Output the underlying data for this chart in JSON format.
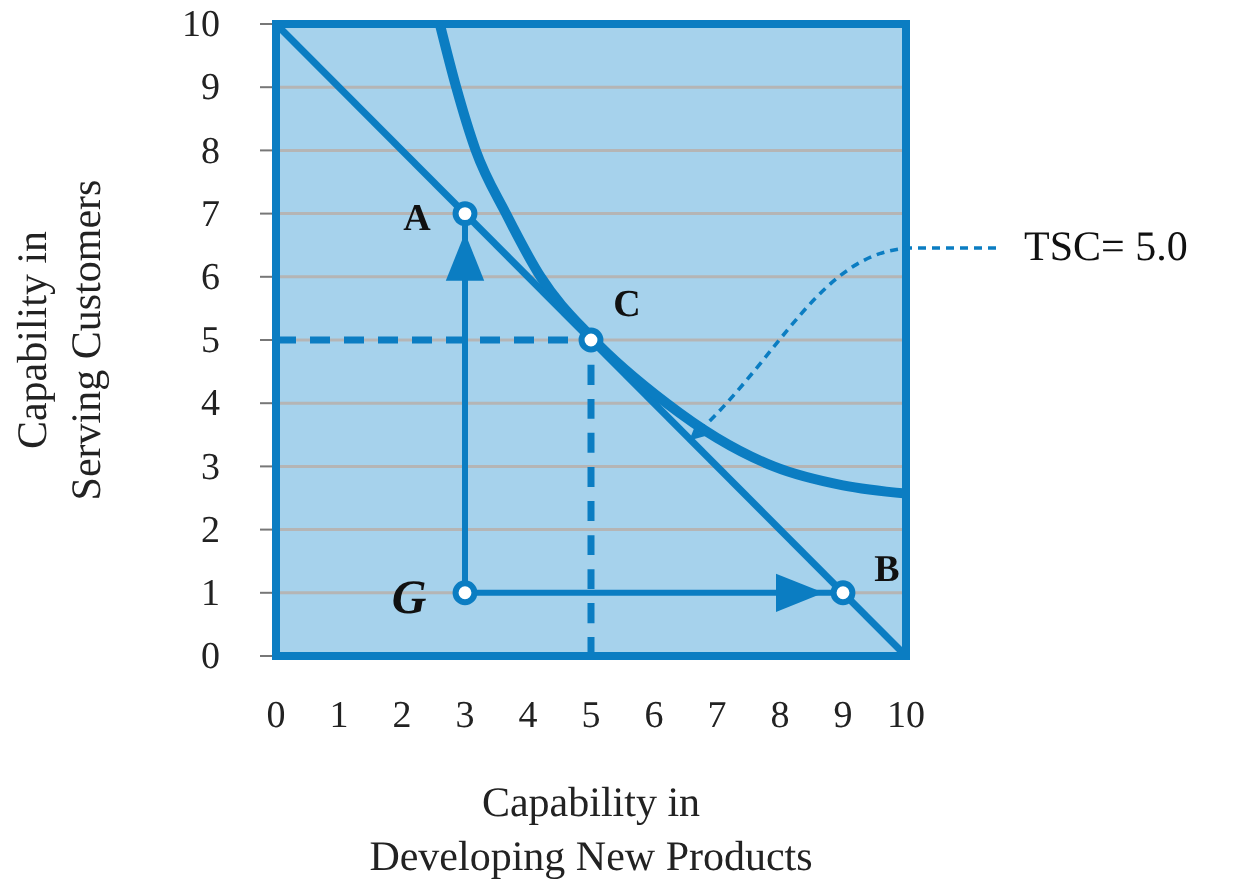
{
  "chart_data": {
    "type": "line",
    "xlabel": "Capability in\nDeveloping New Products",
    "ylabel": "Capability in\nServing Customers",
    "xlim": [
      0,
      10
    ],
    "ylim": [
      0,
      10
    ],
    "xticks": [
      0,
      1,
      2,
      3,
      4,
      5,
      6,
      7,
      8,
      9,
      10
    ],
    "yticks": [
      0,
      1,
      2,
      3,
      4,
      5,
      6,
      7,
      8,
      9,
      10
    ],
    "grid": "y",
    "series": [
      {
        "color": "#0b7dc2",
        "x": [
          0,
          10
        ],
        "values": [
          10,
          0
        ]
      },
      {
        "color": "#0b7dc2",
        "x": [
          2.6,
          2.86,
          3.17,
          3.65,
          4.2,
          5,
          6.2,
          7,
          7.9,
          9,
          10
        ],
        "values": [
          10,
          9,
          8,
          7,
          6,
          5.05,
          4,
          3.45,
          3,
          2.7,
          2.57
        ]
      },
      {
        "color": "#0b7dc2",
        "line_style": "dashed",
        "x": [
          0,
          5,
          5
        ],
        "values": [
          5,
          5,
          0
        ]
      },
      {
        "color": "#0b7dc2",
        "x": [
          3,
          3
        ],
        "values": [
          1,
          7
        ]
      },
      {
        "color": "#0b7dc2",
        "x": [
          3,
          9
        ],
        "values": [
          1,
          1
        ]
      },
      {
        "type": "scatter",
        "color": "#0b7dc2",
        "marker": "circle",
        "x": [
          3,
          5,
          9,
          3
        ],
        "values": [
          7,
          5,
          1,
          1
        ]
      }
    ],
    "annotations": [
      {
        "text": "A",
        "x": 3,
        "y": 7
      },
      {
        "text": "C",
        "x": 5,
        "y": 5
      },
      {
        "text": "B",
        "x": 9,
        "y": 1
      },
      {
        "text": "G",
        "x": 3,
        "y": 1
      },
      "TSC= 5.0"
    ]
  }
}
